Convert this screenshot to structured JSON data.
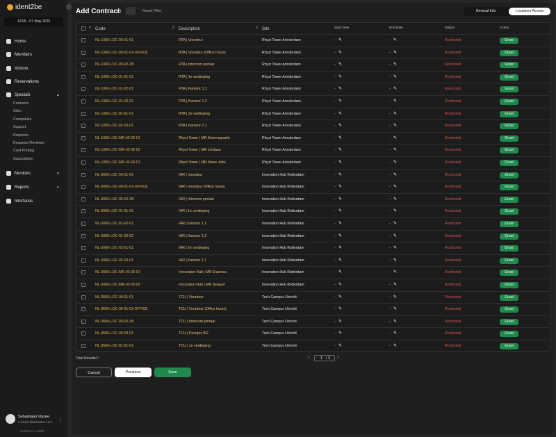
{
  "sidebar": {
    "logo": "ident2be",
    "datetime": "10:09 · 07 May 2026",
    "nav": [
      {
        "label": "Home"
      },
      {
        "label": "Members"
      },
      {
        "label": "Visitors"
      },
      {
        "label": "Reservations"
      },
      {
        "label": "Specials",
        "children": [
          "Contracts",
          "Sites",
          "Companies",
          "Support",
          "Requests",
          "Requests Reviewer",
          "Card Printing",
          "Subscription"
        ]
      },
      {
        "label": "Monitors"
      },
      {
        "label": "Reports"
      },
      {
        "label": "Interfaces"
      }
    ],
    "user": {
      "name": "Sebastiaan Vlazee",
      "email": "s.vlazee@ident2be.com"
    },
    "version": "v0.29.4-rc.0-3899"
  },
  "header": {
    "title": "Add Contract",
    "reset": "Reset Filter",
    "tabs": [
      "General Info",
      "Locations Access"
    ]
  },
  "table": {
    "columns": [
      "Code",
      "Description",
      "Site",
      "Start Date",
      "End Date",
      "Status",
      "Action"
    ],
    "rows": [
      [
        "NL-1000-LOC-00-01-01",
        "RTA | Voordeur",
        "Rhyzi Tower Amsterdam",
        "-",
        "-",
        "Restricted",
        "Grant"
      ],
      [
        "NL-1000-LOC-00-01-01-OFFICE",
        "RTA | Voordeur (Office hours)",
        "Rhyzi Tower Amsterdam",
        "-",
        "-",
        "Restricted",
        "Grant"
      ],
      [
        "NL-1000-LOC-00-02-2N",
        "RTA | Intercom portaal",
        "Rhyzi Tower Amsterdam",
        "-",
        "-",
        "Restricted",
        "Grant"
      ],
      [
        "NL-1000-LOC-01-01-01",
        "RTA | 1e verdieping",
        "Rhyzi Tower Amsterdam",
        "-",
        "-",
        "Restricted",
        "Grant"
      ],
      [
        "NL-1000-LOC-01-02-01",
        "RTA | Kantoor 1.1",
        "Rhyzi Tower Amsterdam",
        "-",
        "-",
        "Restricted",
        "Grant"
      ],
      [
        "NL-1000-LOC-01-02-02",
        "RTA | Kantoor 1.2",
        "Rhyzi Tower Amsterdam",
        "-",
        "-",
        "Restricted",
        "Grant"
      ],
      [
        "NL-1000-LOC-02-01-01",
        "RTA | 2e verdieping",
        "Rhyzi Tower Amsterdam",
        "-",
        "-",
        "Restricted",
        "Grant"
      ],
      [
        "NL-1000-LOC-02-03-01",
        "RTA | Kantoor 2.1",
        "Rhyzi Tower Amsterdam",
        "-",
        "-",
        "Restricted",
        "Grant"
      ],
      [
        "NL-1000-LOC-MR-02-02-01",
        "Rhyzi Tower | MR Keizersgracht",
        "Rhyzi Tower Amsterdam",
        "-",
        "-",
        "Restricted",
        "Grant"
      ],
      [
        "NL-1000-LOC-MR-02-02-02",
        "Rhyzi Tower | MR Jordaan",
        "Rhyzi Tower Amsterdam",
        "-",
        "-",
        "Restricted",
        "Grant"
      ],
      [
        "NL-1000-LOC-MR-02-03-01",
        "Rhyzi Tower | MR Steve Jobs",
        "Rhyzi Tower Amsterdam",
        "-",
        "-",
        "Restricted",
        "Grant"
      ],
      [
        "NL-3000-LOC-00-01-01",
        "IHR | Voordeur",
        "Innovation Hub Rotterdam",
        "-",
        "-",
        "Restricted",
        "Grant"
      ],
      [
        "NL-3000-LOC-00-01-01-OFFICE",
        "IHR | Voordeur (Office hours)",
        "Innovation Hub Rotterdam",
        "-",
        "-",
        "Restricted",
        "Grant"
      ],
      [
        "NL-3000-LOC-00-02-2N",
        "IHR | Intercom portaal",
        "Innovation Hub Rotterdam",
        "-",
        "-",
        "Restricted",
        "Grant"
      ],
      [
        "NL-3000-LOC-01-01-01",
        "IHR | 1e verdieping",
        "Innovation Hub Rotterdam",
        "-",
        "-",
        "Restricted",
        "Grant"
      ],
      [
        "NL-3000-LOC-01-02-01",
        "IHR | Kantoor 1.1",
        "Innovation Hub Rotterdam",
        "-",
        "-",
        "Restricted",
        "Grant"
      ],
      [
        "NL-3000-LOC-01-02-02",
        "IHR | Kantoor 1.2",
        "Innovation Hub Rotterdam",
        "-",
        "-",
        "Restricted",
        "Grant"
      ],
      [
        "NL-3000-LOC-02-01-01",
        "IHR | 2e verdieping",
        "Innovation Hub Rotterdam",
        "-",
        "-",
        "Restricted",
        "Grant"
      ],
      [
        "NL-3000-LOC-02-03-01",
        "IHR | Kantoor 2.1",
        "Innovation Hub Rotterdam",
        "-",
        "-",
        "Restricted",
        "Grant"
      ],
      [
        "NL-3000-LOC-MR-02-02-01",
        "Innovation Hub | MR Erasmus",
        "Innovation Hub Rotterdam",
        "-",
        "-",
        "Restricted",
        "Grant"
      ],
      [
        "NL-3000-LOC-MR-02-02-02",
        "Innovation Hub | MR Seaport",
        "Innovation Hub Rotterdam",
        "-",
        "-",
        "Restricted",
        "Grant"
      ],
      [
        "NL-3500-LOC-00-01-01",
        "TCU | Voordeur",
        "Tech Campus Utrecht",
        "-",
        "-",
        "Restricted",
        "Grant"
      ],
      [
        "NL-3500-LOC-00-01-01-OFFICE",
        "TCU | Voordeur (Office hours)",
        "Tech Campus Utrecht",
        "-",
        "-",
        "Restricted",
        "Grant"
      ],
      [
        "NL-3500-LOC-00-02-2N",
        "TCU | Intercom portaal",
        "Tech Campus Utrecht",
        "-",
        "-",
        "Restricted",
        "Grant"
      ],
      [
        "NL-3500-LOC-00-03-01",
        "TCU | Poortjes BG",
        "Tech Campus Utrecht",
        "-",
        "-",
        "Restricted",
        "Grant"
      ],
      [
        "NL-3500-LOC-01-01-01",
        "TCU | 1e verdieping",
        "Tech Campus Utrecht",
        "-",
        "-",
        "Restricted",
        "Grant"
      ]
    ]
  },
  "footer": {
    "total_label": "Total Results",
    "total": 42,
    "page": 1,
    "pages": "/ 2",
    "buttons": [
      "Cancel",
      "Previous",
      "Save"
    ]
  }
}
